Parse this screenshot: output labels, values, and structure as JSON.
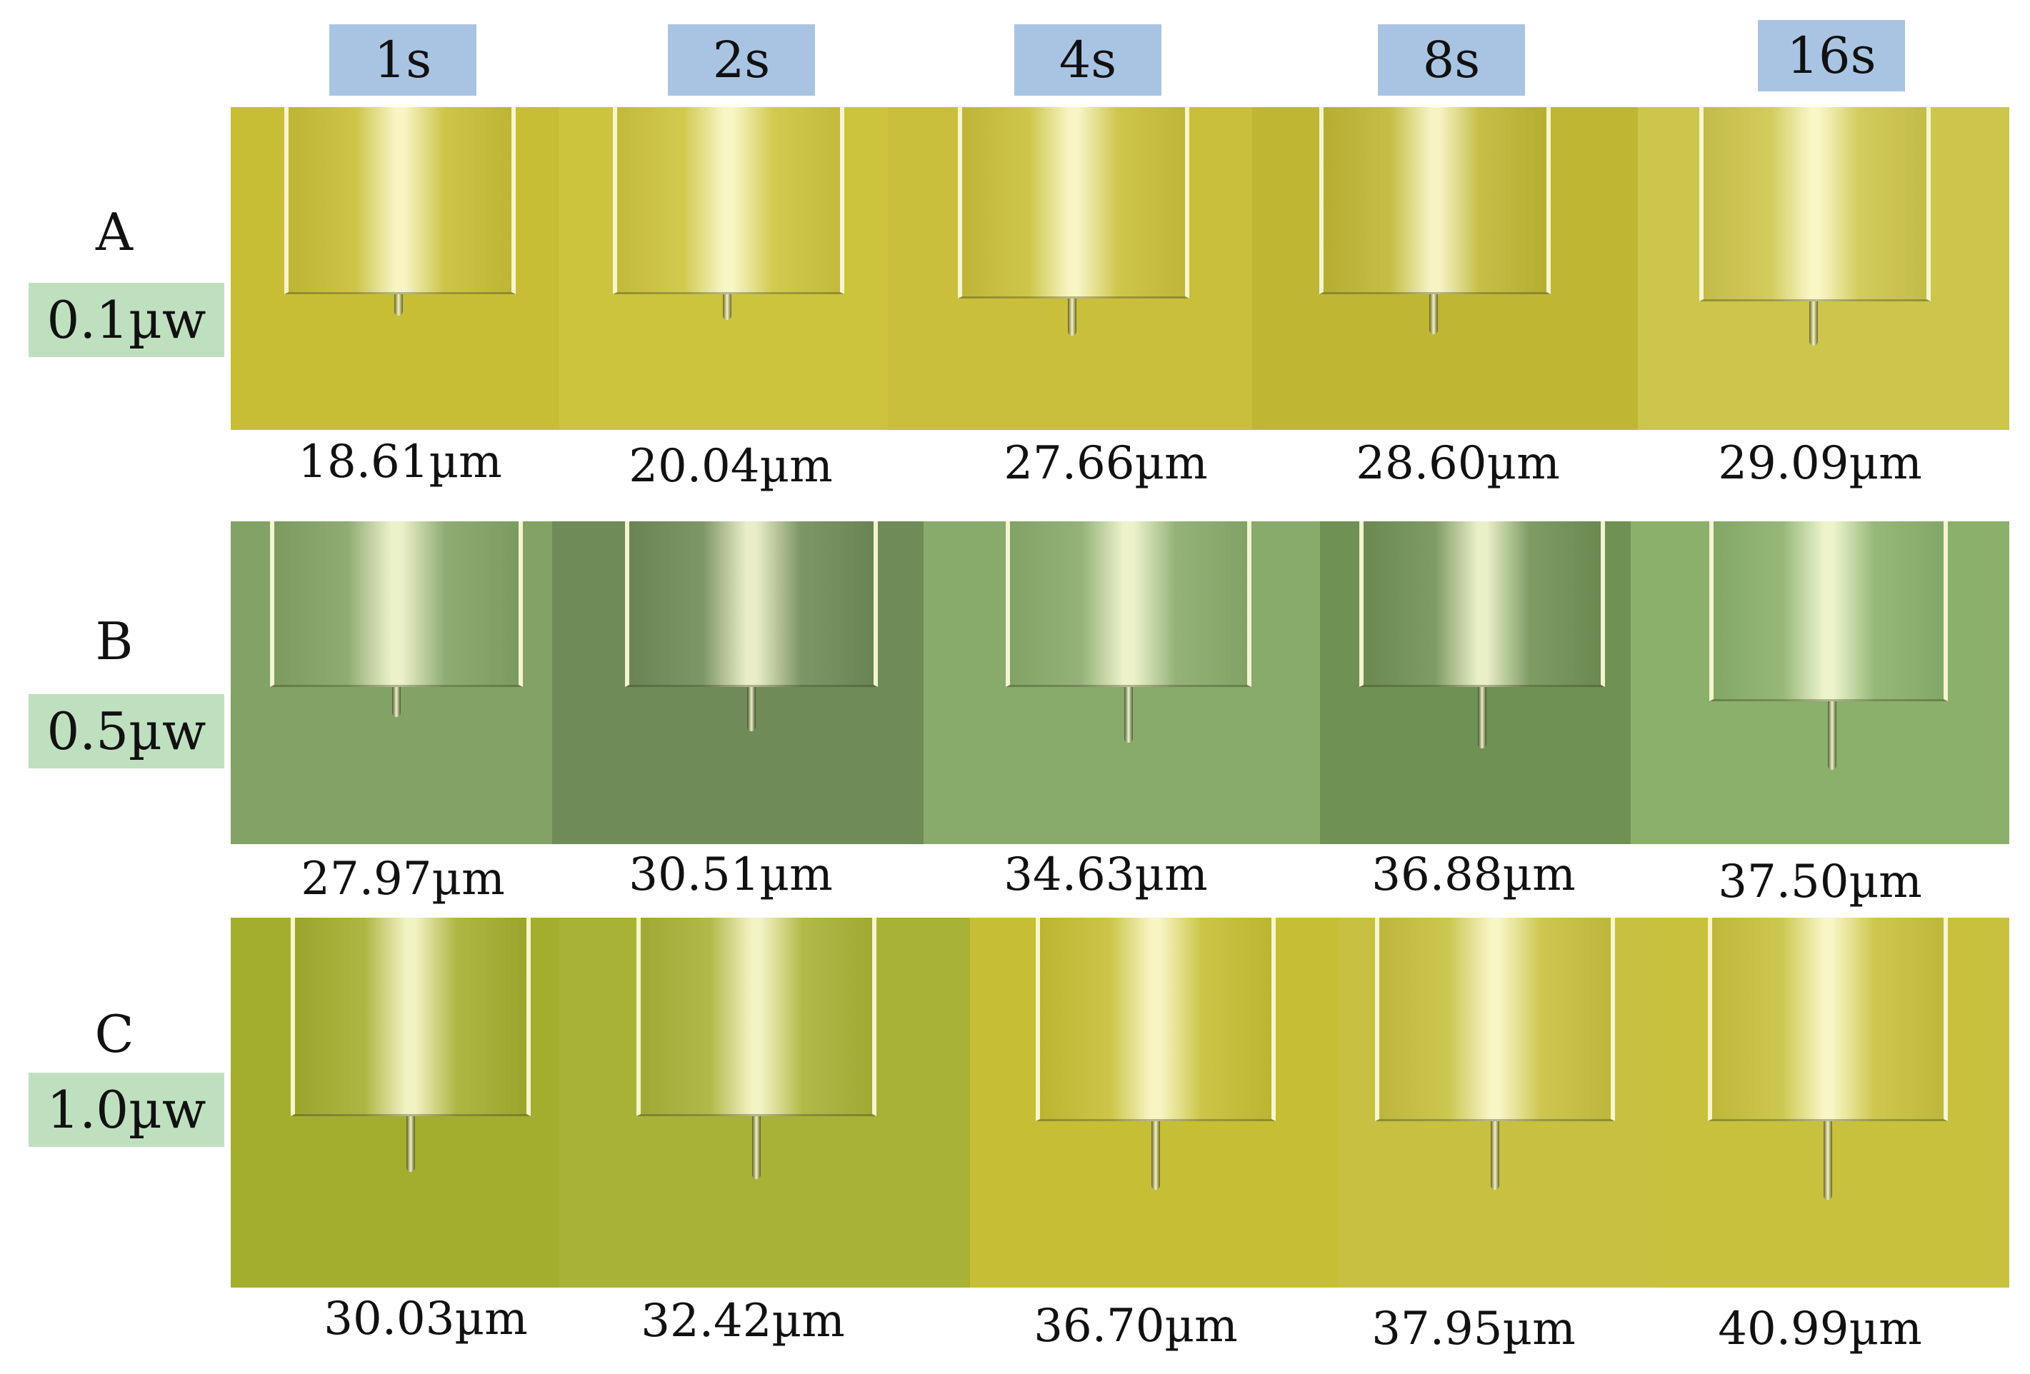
{
  "time_labels": [
    "1s",
    "2s",
    "4s",
    "8s",
    "16s"
  ],
  "rows": [
    {
      "letter": "A",
      "power": "0.1µw",
      "measurements": [
        "18.61µm",
        "20.04µm",
        "27.66µm",
        "28.60µm",
        "29.09µm"
      ],
      "panel_colors": [
        "#c8be36",
        "#cdc43e",
        "#c9bf3a",
        "#bfb734",
        "#cdc64c"
      ]
    },
    {
      "letter": "B",
      "power": "0.5µw",
      "measurements": [
        "27.97µm",
        "30.51µm",
        "34.63µm",
        "36.88µm",
        "37.50µm"
      ],
      "panel_colors": [
        "#82a365",
        "#6f8b57",
        "#88aa6b",
        "#6f9154",
        "#8ab06c"
      ]
    },
    {
      "letter": "C",
      "power": "1.0µw",
      "measurements": [
        "30.03µm",
        "32.42µm",
        "36.70µm",
        "37.95µm",
        "40.99µm"
      ],
      "panel_colors": [
        "#a3ae2f",
        "#a8b236",
        "#c6be34",
        "#c7c040",
        "#c8c13e"
      ]
    }
  ]
}
